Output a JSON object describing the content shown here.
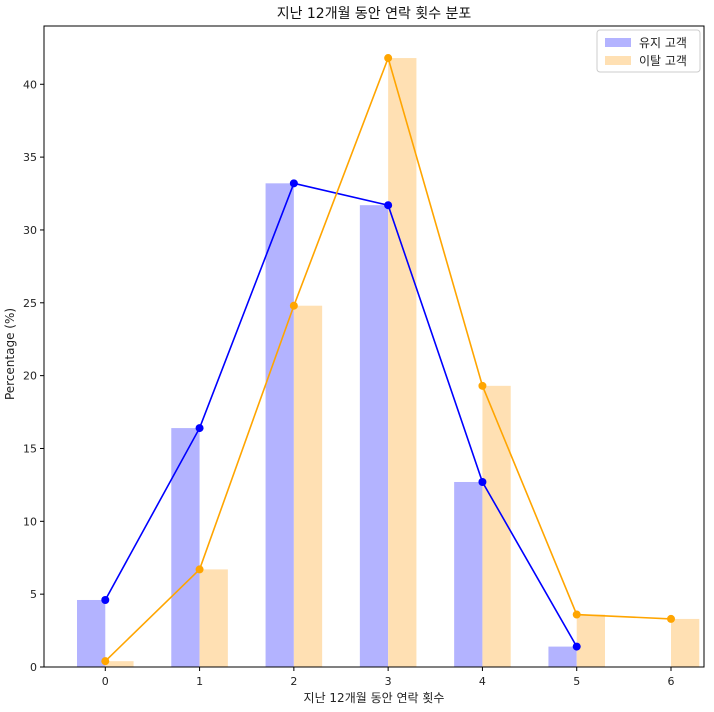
{
  "chart_data": {
    "type": "bar",
    "title": "지난 12개월 동안 연락 횟수 분포",
    "xlabel": "지난 12개월 동안 연락 횟수",
    "ylabel": "Percentage (%)",
    "categories": [
      "0",
      "1",
      "2",
      "3",
      "4",
      "5",
      "6"
    ],
    "x": [
      0,
      1,
      2,
      3,
      4,
      5,
      6
    ],
    "ylim": [
      0,
      44
    ],
    "yticks": [
      0,
      5,
      10,
      15,
      20,
      25,
      30,
      35,
      40
    ],
    "grid": false,
    "legend_position": "top-right",
    "series": [
      {
        "name": "유지 고객",
        "x": [
          0,
          1,
          2,
          3,
          4,
          5
        ],
        "values": [
          4.6,
          16.4,
          33.2,
          31.7,
          12.7,
          1.4
        ],
        "bar_color": "#b3b3ff",
        "line_color": "#0000ff"
      },
      {
        "name": "이탈 고객",
        "x": [
          0,
          1,
          2,
          3,
          4,
          5,
          6
        ],
        "values": [
          0.4,
          6.7,
          24.8,
          41.8,
          19.3,
          3.6,
          3.3
        ],
        "bar_color": "#ffe0b3",
        "line_color": "#ffa500"
      }
    ]
  }
}
